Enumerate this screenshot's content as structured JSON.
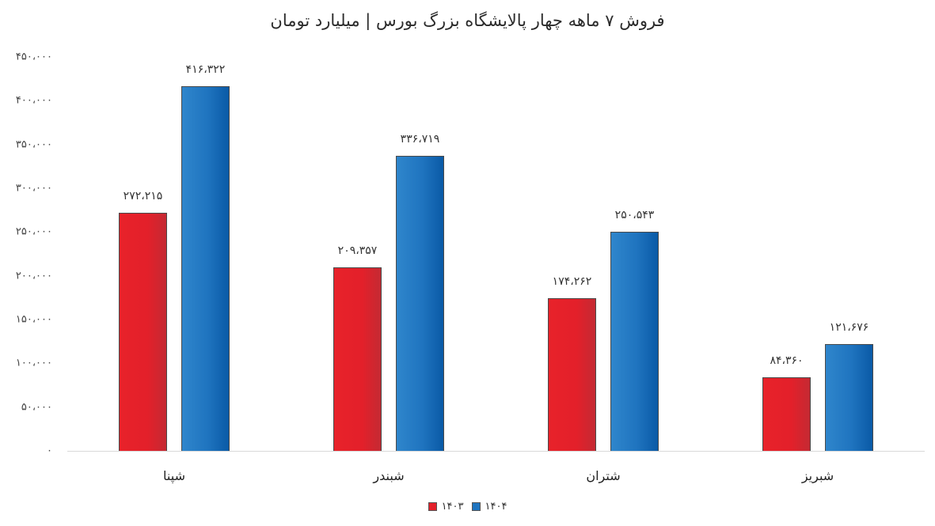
{
  "title": "فروش ۷ ماهه چهار پالایشگاه بزرگ بورس | میلیارد تومان",
  "y_axis": {
    "ticks": [
      {
        "value": 450000,
        "label": "۴۵۰،۰۰۰"
      },
      {
        "value": 400000,
        "label": "۴۰۰،۰۰۰"
      },
      {
        "value": 350000,
        "label": "۳۵۰،۰۰۰"
      },
      {
        "value": 300000,
        "label": "۳۰۰،۰۰۰"
      },
      {
        "value": 250000,
        "label": "۲۵۰،۰۰۰"
      },
      {
        "value": 200000,
        "label": "۲۰۰،۰۰۰"
      },
      {
        "value": 150000,
        "label": "۱۵۰،۰۰۰"
      },
      {
        "value": 100000,
        "label": "۱۰۰،۰۰۰"
      },
      {
        "value": 50000,
        "label": "۵۰،۰۰۰"
      },
      {
        "value": 0,
        "label": "۰"
      }
    ]
  },
  "groups": [
    {
      "name": "شپنا",
      "values": [
        {
          "label": "۲۷۲،۲۱۵"
        },
        {
          "label": "۴۱۶،۳۲۲"
        }
      ]
    },
    {
      "name": "شبندر",
      "values": [
        {
          "label": "۲۰۹،۳۵۷"
        },
        {
          "label": "۳۳۶،۷۱۹"
        }
      ]
    },
    {
      "name": "شتران",
      "values": [
        {
          "label": "۱۷۴،۲۶۲"
        },
        {
          "label": "۲۵۰،۵۴۳"
        }
      ]
    },
    {
      "name": "شبریز",
      "values": [
        {
          "label": "۸۴،۳۶۰"
        },
        {
          "label": "۱۲۱،۶۷۶"
        }
      ]
    }
  ],
  "legend": [
    {
      "label": "۱۴۰۳",
      "color": "#e3202a"
    },
    {
      "label": "۱۴۰۴",
      "color": "#1f74bf"
    }
  ],
  "chart_data": {
    "type": "bar",
    "title": "فروش ۷ ماهه چهار پالایشگاه بزرگ بورس | میلیارد تومان",
    "xlabel": "",
    "ylabel": "میلیارد تومان",
    "categories": [
      "شپنا",
      "شبندر",
      "شتران",
      "شبریز"
    ],
    "series": [
      {
        "name": "۱۴۰۳",
        "color": "#e3202a",
        "values": [
          272215,
          209357,
          174262,
          84360
        ]
      },
      {
        "name": "۱۴۰۴",
        "color": "#1f74bf",
        "values": [
          416322,
          336719,
          250543,
          121676
        ]
      }
    ],
    "ylim": [
      0,
      450000
    ],
    "ytick_step": 50000,
    "grid": false,
    "legend_position": "bottom",
    "data_labels": true
  }
}
